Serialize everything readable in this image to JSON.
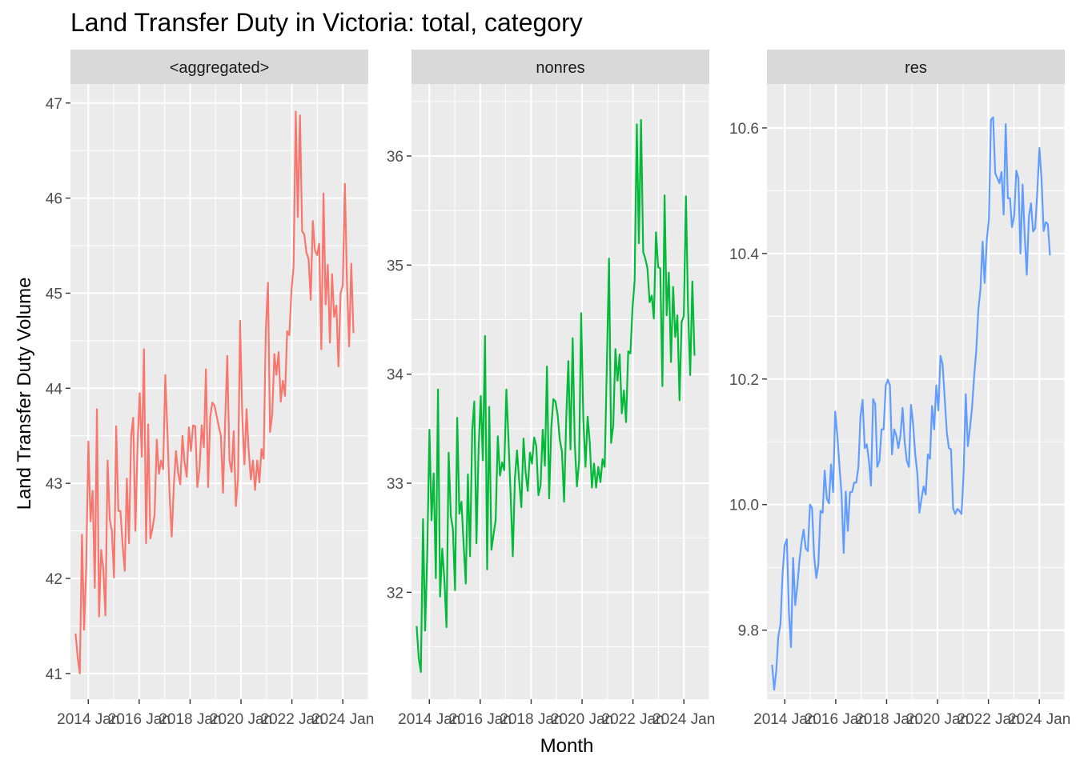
{
  "chart_data": {
    "type": "line",
    "title": "Land Transfer Duty in Victoria: total, category",
    "xlabel": "Month",
    "ylabel": "Land Transfer Duty Volume",
    "x_start": "2013 Jul",
    "x_end": "2024 Jun",
    "x_tick_values": [
      2014,
      2016,
      2018,
      2020,
      2022,
      2024
    ],
    "x_tick_labels": [
      "2014 Jan",
      "2016 Jan",
      "2018 Jan",
      "2020 Jan",
      "2022 Jan",
      "2024 Jan"
    ],
    "xlim": [
      2013.3,
      2025.0
    ],
    "grid": true,
    "legend": "none",
    "panels": [
      {
        "name": "<aggregated>",
        "color": "#F8766D",
        "ylim": [
          40.73,
          47.2
        ],
        "y_ticks": [
          41,
          42,
          43,
          44,
          45,
          46,
          47
        ],
        "values": [
          41.42,
          41.17,
          41.0,
          42.46,
          41.46,
          42.12,
          43.44,
          42.6,
          42.92,
          41.9,
          43.78,
          41.6,
          42.3,
          42.09,
          41.61,
          43.24,
          42.62,
          42.5,
          42.01,
          43.6,
          42.71,
          42.71,
          42.36,
          42.08,
          43.05,
          42.37,
          43.5,
          43.69,
          42.5,
          43.4,
          43.95,
          43.28,
          44.41,
          42.37,
          43.62,
          42.42,
          42.53,
          42.67,
          43.46,
          43.1,
          43.24,
          43.15,
          44.14,
          43.52,
          42.89,
          42.44,
          42.99,
          43.34,
          43.11,
          42.99,
          43.5,
          43.22,
          43.07,
          43.59,
          43.34,
          43.61,
          43.6,
          42.96,
          43.15,
          43.61,
          43.38,
          44.2,
          42.96,
          43.7,
          43.85,
          43.82,
          43.71,
          43.6,
          43.5,
          42.9,
          43.67,
          44.34,
          43.24,
          43.12,
          43.55,
          42.76,
          43.05,
          44.71,
          43.7,
          43.2,
          43.78,
          43.35,
          43.04,
          43.24,
          42.93,
          43.24,
          43.01,
          43.36,
          43.26,
          44.6,
          45.11,
          43.54,
          43.72,
          44.36,
          44.14,
          44.38,
          43.86,
          44.08,
          43.92,
          44.6,
          44.56,
          45.02,
          45.28,
          46.91,
          45.8,
          46.87,
          45.65,
          45.62,
          45.43,
          45.36,
          44.93,
          45.76,
          45.45,
          45.4,
          45.52,
          44.41,
          46.05,
          44.88,
          45.3,
          44.48,
          45.2,
          44.75,
          44.87,
          44.23,
          45.0,
          45.08,
          46.15,
          45.11,
          44.44,
          45.31,
          44.58
        ]
      },
      {
        "name": "nonres",
        "color": "#00BA38",
        "ylim": [
          31.02,
          36.66
        ],
        "y_ticks": [
          32,
          33,
          34,
          35,
          36
        ],
        "values": [
          31.69,
          31.4,
          31.27,
          32.67,
          31.65,
          32.36,
          33.49,
          32.66,
          33.09,
          32.13,
          33.86,
          31.96,
          32.4,
          32.11,
          31.68,
          33.28,
          32.7,
          32.58,
          32.02,
          33.6,
          32.72,
          32.83,
          32.44,
          32.08,
          33.08,
          32.33,
          33.48,
          33.75,
          32.45,
          33.31,
          33.8,
          33.21,
          34.35,
          32.21,
          33.7,
          32.39,
          32.53,
          32.66,
          33.43,
          33.07,
          33.19,
          33.12,
          33.86,
          33.39,
          32.9,
          32.33,
          33.05,
          33.3,
          33.02,
          32.78,
          33.41,
          33.1,
          32.93,
          33.28,
          33.18,
          33.42,
          33.34,
          32.89,
          32.98,
          33.49,
          33.16,
          34.07,
          32.86,
          33.51,
          33.77,
          33.75,
          33.62,
          33.4,
          33.29,
          32.83,
          33.6,
          34.12,
          33.31,
          34.33,
          33.37,
          32.97,
          33.2,
          34.56,
          33.59,
          33.15,
          33.61,
          33.38,
          32.96,
          33.18,
          32.96,
          33.15,
          33.01,
          33.22,
          33.15,
          34.08,
          35.06,
          33.37,
          33.53,
          34.23,
          33.94,
          34.18,
          33.64,
          33.85,
          33.56,
          34.21,
          34.19,
          34.6,
          34.86,
          36.29,
          35.2,
          36.33,
          35.12,
          35.06,
          34.97,
          34.66,
          34.72,
          34.51,
          35.3,
          34.98,
          34.97,
          33.89,
          35.64,
          34.54,
          34.93,
          34.11,
          34.8,
          34.34,
          34.54,
          33.76,
          34.48,
          34.53,
          35.63,
          34.61,
          33.99,
          34.85,
          34.17
        ]
      },
      {
        "name": "res",
        "color": "#619CFF",
        "ylim": [
          9.69,
          10.67
        ],
        "y_ticks": [
          9.8,
          10.0,
          10.2,
          10.4,
          10.6
        ],
        "values": [
          9.745,
          9.705,
          9.735,
          9.79,
          9.81,
          9.89,
          9.935,
          9.945,
          9.83,
          9.773,
          9.915,
          9.84,
          9.87,
          9.91,
          9.94,
          9.96,
          9.93,
          9.926,
          10.0,
          9.995,
          9.918,
          9.883,
          9.905,
          9.99,
          9.987,
          10.054,
          10.01,
          10.002,
          10.064,
          10.02,
          10.148,
          10.11,
          10.062,
          10.017,
          9.923,
          10.021,
          9.958,
          10.02,
          10.02,
          10.035,
          10.035,
          10.06,
          10.14,
          10.167,
          10.09,
          10.096,
          10.07,
          10.03,
          10.168,
          10.16,
          10.06,
          10.07,
          10.12,
          10.12,
          10.19,
          10.199,
          10.19,
          10.08,
          10.12,
          10.11,
          10.09,
          10.111,
          10.154,
          10.1,
          10.07,
          10.06,
          10.159,
          10.128,
          10.08,
          10.05,
          9.987,
          10.01,
          10.029,
          10.016,
          10.08,
          10.073,
          10.157,
          10.12,
          10.19,
          10.15,
          10.237,
          10.224,
          10.17,
          10.116,
          10.09,
          10.088,
          9.994,
          9.985,
          9.993,
          9.99,
          9.985,
          10.05,
          10.176,
          10.093,
          10.121,
          10.155,
          10.205,
          10.245,
          10.31,
          10.344,
          10.419,
          10.353,
          10.421,
          10.455,
          10.613,
          10.617,
          10.528,
          10.52,
          10.512,
          10.53,
          10.462,
          10.606,
          10.488,
          10.488,
          10.442,
          10.46,
          10.532,
          10.52,
          10.4,
          10.51,
          10.43,
          10.366,
          10.459,
          10.48,
          10.435,
          10.44,
          10.5,
          10.568,
          10.52,
          10.436,
          10.45,
          10.447,
          10.397
        ]
      }
    ]
  }
}
